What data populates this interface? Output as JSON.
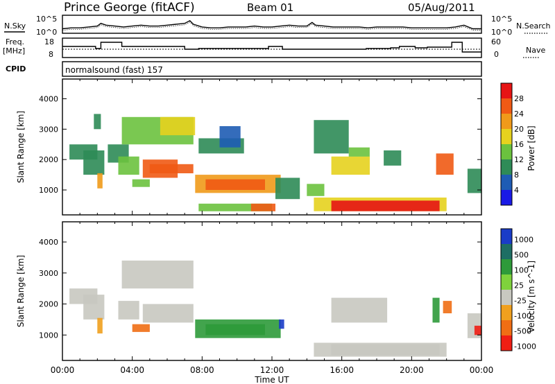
{
  "header": {
    "station": "Prince George (fitACF)",
    "beam": "Beam 01",
    "date": "05/Aug/2011"
  },
  "colors": {
    "power_scale": [
      "#1a1ae6",
      "#1e5cb4",
      "#2e8b57",
      "#6bc23e",
      "#e6d21e",
      "#f09a1a",
      "#f05a14",
      "#e61414"
    ],
    "velocity_scale": [
      "#1a3cc8",
      "#1e6e64",
      "#2e9a3a",
      "#7fd23c",
      "#c8c8c0",
      "#f0a01e",
      "#f06e14",
      "#f01e14"
    ],
    "trace": "#000000"
  },
  "chart_data": [
    {
      "type": "line",
      "panel": "noise",
      "left_label": "N.Sky",
      "right_label": "N.Search",
      "left_ticks": [
        "10^5",
        "10^0"
      ],
      "right_ticks": [
        "10^5",
        "10^0"
      ],
      "series": [
        {
          "x": [
            0,
            0.5,
            1,
            1.5,
            2,
            2.2,
            2.5,
            3,
            3.5,
            4,
            4.5,
            5,
            5.5,
            6,
            6.5,
            7,
            7.3,
            7.5,
            8,
            8.5,
            9,
            9.5,
            10,
            10.5,
            11,
            11.5,
            12,
            12.5,
            13,
            13.5,
            14,
            14.3,
            14.5,
            15,
            15.5,
            16,
            16.5,
            17,
            17.5,
            18,
            18.5,
            19,
            19.5,
            20,
            20.5,
            21,
            21.5,
            22,
            22.5,
            23,
            23.5,
            24
          ],
          "y": [
            0.25,
            0.3,
            0.3,
            0.35,
            0.4,
            0.55,
            0.45,
            0.4,
            0.35,
            0.4,
            0.45,
            0.4,
            0.4,
            0.45,
            0.5,
            0.55,
            0.7,
            0.5,
            0.35,
            0.3,
            0.3,
            0.35,
            0.35,
            0.35,
            0.4,
            0.35,
            0.35,
            0.4,
            0.45,
            0.4,
            0.4,
            0.6,
            0.45,
            0.4,
            0.35,
            0.35,
            0.35,
            0.35,
            0.3,
            0.35,
            0.35,
            0.35,
            0.35,
            0.3,
            0.3,
            0.3,
            0.3,
            0.3,
            0.35,
            0.45,
            0.25,
            0.25
          ]
        }
      ]
    },
    {
      "type": "line",
      "panel": "frequency",
      "left_label": "Freq.",
      "left_unit": "[MHz]",
      "right_label": "Nave",
      "left_ticks": [
        "18",
        "8"
      ],
      "right_ticks": [
        "60",
        "0"
      ],
      "cpid_label": "CPID",
      "cpid_text": "normalsound (fast) 157",
      "series": [
        {
          "name": "Freq",
          "x": [
            0,
            1.9,
            1.9,
            2.2,
            2.2,
            3.4,
            3.4,
            7.0,
            7.0,
            7.8,
            7.8,
            11.8,
            11.8,
            12.6,
            12.6,
            17.4,
            17.4,
            18.8,
            18.8,
            19.3,
            19.3,
            20.2,
            20.2,
            20.9,
            20.9,
            22.3,
            22.3,
            22.9,
            22.9,
            24
          ],
          "y": [
            14,
            14,
            12.5,
            12.5,
            17,
            17,
            14,
            14,
            12,
            12,
            12.5,
            12.5,
            14,
            14,
            12,
            12,
            12.5,
            12.5,
            13,
            13,
            14,
            14,
            13,
            13,
            13.5,
            13.5,
            17,
            17,
            10,
            10
          ]
        },
        {
          "name": "Nave",
          "x": [
            0,
            24
          ],
          "y": [
            25,
            25
          ]
        }
      ]
    },
    {
      "type": "heatmap",
      "panel": "power",
      "ylabel": "Slant Range [km]",
      "yticks": [
        1000,
        2000,
        3000,
        4000
      ],
      "ylim": [
        180,
        4650
      ],
      "xlim": [
        0,
        24
      ],
      "colorbar_label": "Power [dB]",
      "colorbar_ticks": [
        4,
        8,
        12,
        16,
        20,
        24,
        28
      ],
      "bands": [
        {
          "x": [
            0.4,
            2.0
          ],
          "y": [
            2000,
            2500
          ],
          "v": 8
        },
        {
          "x": [
            1.2,
            2.4
          ],
          "y": [
            1500,
            2300
          ],
          "v": 9
        },
        {
          "x": [
            2.0,
            2.3
          ],
          "y": [
            1050,
            1550
          ],
          "v": 20
        },
        {
          "x": [
            1.8,
            2.2
          ],
          "y": [
            3000,
            3500
          ],
          "v": 8
        },
        {
          "x": [
            2.6,
            3.8
          ],
          "y": [
            1900,
            2500
          ],
          "v": 8
        },
        {
          "x": [
            3.2,
            4.4
          ],
          "y": [
            1500,
            2100
          ],
          "v": 15
        },
        {
          "x": [
            4.0,
            5.0
          ],
          "y": [
            1100,
            1350
          ],
          "v": 14
        },
        {
          "x": [
            4.6,
            6.6
          ],
          "y": [
            1400,
            2000
          ],
          "v": 24
        },
        {
          "x": [
            5.0,
            7.5
          ],
          "y": [
            1550,
            1850
          ],
          "v": 26
        },
        {
          "x": [
            3.4,
            7.5
          ],
          "y": [
            2500,
            3400
          ],
          "v": 15
        },
        {
          "x": [
            5.6,
            7.6
          ],
          "y": [
            2800,
            3400
          ],
          "v": 17
        },
        {
          "x": [
            7.6,
            12.5
          ],
          "y": [
            900,
            1500
          ],
          "v": 20
        },
        {
          "x": [
            8.2,
            11.6
          ],
          "y": [
            1000,
            1350
          ],
          "v": 26
        },
        {
          "x": [
            7.8,
            10.4
          ],
          "y": [
            2200,
            2700
          ],
          "v": 8
        },
        {
          "x": [
            9.0,
            10.2
          ],
          "y": [
            2400,
            3100
          ],
          "v": 7
        },
        {
          "x": [
            7.8,
            12.0
          ],
          "y": [
            300,
            550
          ],
          "v": 12
        },
        {
          "x": [
            10.8,
            12.2
          ],
          "y": [
            300,
            550
          ],
          "v": 24
        },
        {
          "x": [
            12.2,
            13.6
          ],
          "y": [
            700,
            1400
          ],
          "v": 11
        },
        {
          "x": [
            14.0,
            15.0
          ],
          "y": [
            800,
            1200
          ],
          "v": 12
        },
        {
          "x": [
            14.4,
            22.0
          ],
          "y": [
            300,
            750
          ],
          "v": 16
        },
        {
          "x": [
            15.4,
            21.6
          ],
          "y": [
            300,
            650
          ],
          "v": 28
        },
        {
          "x": [
            15.4,
            17.6
          ],
          "y": [
            1500,
            2100
          ],
          "v": 18
        },
        {
          "x": [
            16.4,
            17.6
          ],
          "y": [
            2100,
            2400
          ],
          "v": 12
        },
        {
          "x": [
            18.4,
            19.4
          ],
          "y": [
            1800,
            2300
          ],
          "v": 11
        },
        {
          "x": [
            14.4,
            16.4
          ],
          "y": [
            2200,
            3300
          ],
          "v": 8
        },
        {
          "x": [
            21.4,
            22.4
          ],
          "y": [
            1500,
            2200
          ],
          "v": 24
        },
        {
          "x": [
            23.2,
            24.0
          ],
          "y": [
            900,
            1700
          ],
          "v": 8
        }
      ]
    },
    {
      "type": "heatmap",
      "panel": "velocity",
      "ylabel": "Slant Range [km]",
      "yticks": [
        1000,
        2000,
        3000,
        4000
      ],
      "ylim": [
        180,
        4650
      ],
      "xlim": [
        0,
        24
      ],
      "xlabel": "Time UT",
      "xticks": [
        "00:00",
        "04:00",
        "08:00",
        "12:00",
        "16:00",
        "20:00",
        "00:00"
      ],
      "colorbar_label": "Velocity [m s^-1]",
      "colorbar_ticks": [
        "1000",
        "500",
        "100",
        "25",
        "-25",
        "-100",
        "-500",
        "-1000"
      ],
      "bands": [
        {
          "x": [
            0.4,
            2.0
          ],
          "y": [
            2000,
            2500
          ],
          "v": 0
        },
        {
          "x": [
            1.2,
            2.4
          ],
          "y": [
            1500,
            2300
          ],
          "v": 0
        },
        {
          "x": [
            2.0,
            2.3
          ],
          "y": [
            1050,
            1550
          ],
          "v": -60
        },
        {
          "x": [
            3.2,
            4.4
          ],
          "y": [
            1500,
            2100
          ],
          "v": 0
        },
        {
          "x": [
            4.6,
            7.5
          ],
          "y": [
            1400,
            2000
          ],
          "v": 0
        },
        {
          "x": [
            3.4,
            7.5
          ],
          "y": [
            2500,
            3400
          ],
          "v": 0
        },
        {
          "x": [
            4.0,
            5.0
          ],
          "y": [
            1100,
            1350
          ],
          "v": -300
        },
        {
          "x": [
            7.6,
            12.5
          ],
          "y": [
            900,
            1500
          ],
          "v": 60
        },
        {
          "x": [
            8.2,
            11.6
          ],
          "y": [
            1000,
            1350
          ],
          "v": 80
        },
        {
          "x": [
            12.4,
            12.7
          ],
          "y": [
            1200,
            1500
          ],
          "v": 800
        },
        {
          "x": [
            14.4,
            22.0
          ],
          "y": [
            300,
            750
          ],
          "v": 0
        },
        {
          "x": [
            15.4,
            21.6
          ],
          "y": [
            350,
            700
          ],
          "v": 0
        },
        {
          "x": [
            15.4,
            18.6
          ],
          "y": [
            1400,
            2200
          ],
          "v": 0
        },
        {
          "x": [
            21.2,
            21.6
          ],
          "y": [
            1400,
            2200
          ],
          "v": 80
        },
        {
          "x": [
            21.8,
            22.3
          ],
          "y": [
            1700,
            2100
          ],
          "v": -200
        },
        {
          "x": [
            23.2,
            24.0
          ],
          "y": [
            900,
            1700
          ],
          "v": 0
        },
        {
          "x": [
            23.6,
            24.0
          ],
          "y": [
            1000,
            1300
          ],
          "v": -800
        }
      ]
    }
  ]
}
